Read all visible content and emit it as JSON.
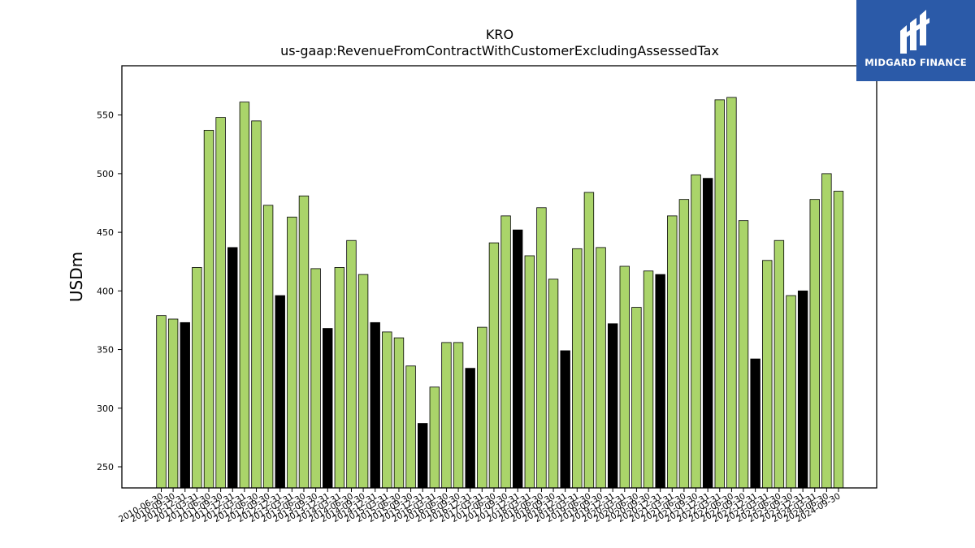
{
  "brand": {
    "name": "MIDGARD FINANCE",
    "background": "#2b5aa8"
  },
  "colors": {
    "normal_bar": "#aad46a",
    "highlight_bar": "#000000",
    "edge": "#000000"
  },
  "chart_data": {
    "type": "bar",
    "title": "KRO",
    "subtitle": "us-gaap:RevenueFromContractWithCustomerExcludingAssessedTax",
    "xlabel": "",
    "ylabel": "USDm",
    "ylim": [
      232,
      592
    ],
    "yticks": [
      250,
      300,
      350,
      400,
      450,
      500,
      550
    ],
    "grid": false,
    "categories": [
      "2010-06-30",
      "2010-09-30",
      "2010-12-31",
      "2011-03-31",
      "2011-06-30",
      "2011-09-30",
      "2011-12-31",
      "2012-03-31",
      "2012-06-30",
      "2012-09-30",
      "2012-12-31",
      "2013-03-31",
      "2013-06-30",
      "2013-09-30",
      "2013-12-31",
      "2014-03-31",
      "2014-06-30",
      "2014-09-30",
      "2014-12-31",
      "2015-03-31",
      "2015-06-30",
      "2015-09-30",
      "2015-12-31",
      "2016-03-31",
      "2016-06-30",
      "2016-09-30",
      "2016-12-31",
      "2017-03-31",
      "2017-06-30",
      "2017-09-30",
      "2017-12-31",
      "2018-03-31",
      "2018-06-30",
      "2018-09-30",
      "2018-12-31",
      "2019-03-31",
      "2019-06-30",
      "2019-09-30",
      "2019-12-31",
      "2020-03-31",
      "2020-06-30",
      "2020-09-30",
      "2020-12-31",
      "2021-03-31",
      "2021-06-30",
      "2021-09-30",
      "2021-12-31",
      "2022-03-31",
      "2022-06-30",
      "2022-09-30",
      "2022-12-31",
      "2023-03-31",
      "2023-06-30",
      "2023-09-30",
      "2023-12-31",
      "2024-03-31",
      "2024-06-30",
      "2024-09-30"
    ],
    "values": [
      379,
      376,
      373,
      420,
      537,
      548,
      437,
      561,
      545,
      473,
      396,
      463,
      481,
      419,
      368,
      420,
      443,
      414,
      373,
      365,
      360,
      336,
      287,
      318,
      356,
      356,
      334,
      369,
      441,
      464,
      452,
      430,
      471,
      410,
      349,
      436,
      484,
      437,
      372,
      421,
      386,
      417,
      414,
      464,
      478,
      499,
      496,
      563,
      565,
      460,
      342,
      426,
      443,
      396,
      400,
      478,
      500,
      485
    ],
    "highlighted": [
      "2010-12-31",
      "2011-12-31",
      "2012-12-31",
      "2013-12-31",
      "2014-12-31",
      "2015-12-31",
      "2016-12-31",
      "2017-12-31",
      "2018-12-31",
      "2019-12-31",
      "2020-12-31",
      "2021-12-31",
      "2022-12-31",
      "2023-12-31"
    ]
  }
}
